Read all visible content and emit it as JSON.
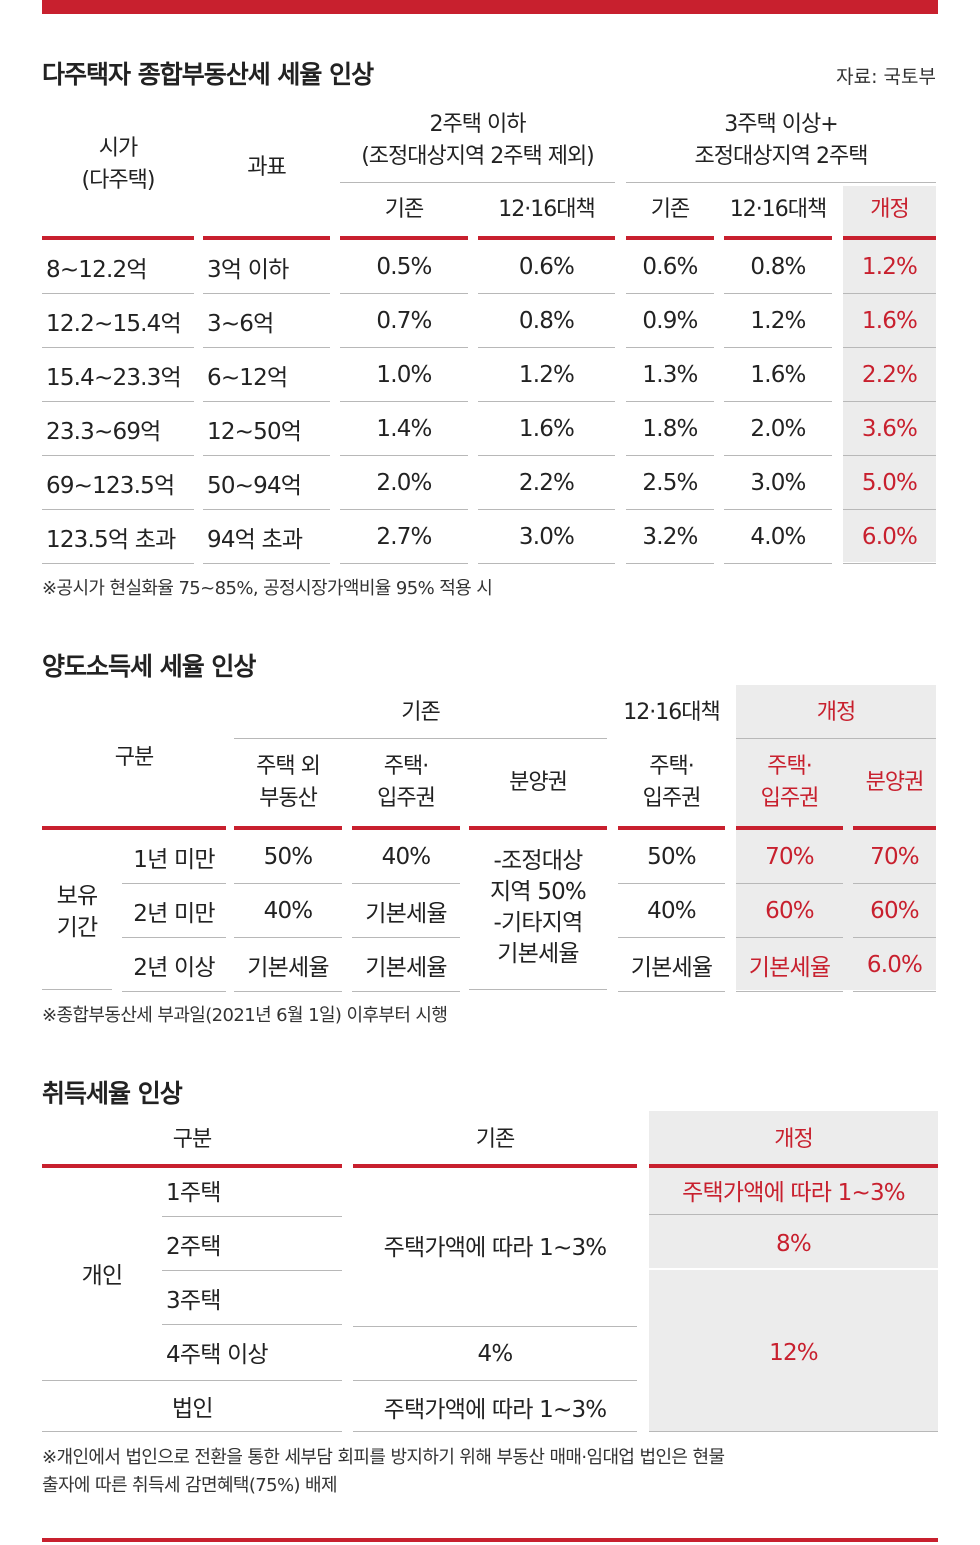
{
  "colors": {
    "accent": "#c8202e",
    "shade": "#ececec"
  },
  "table1": {
    "title": "다주택자 종합부동산세 세율 인상",
    "source": "자료: 국토부",
    "headers": {
      "price": "시가\n(다주택)",
      "base": "과표",
      "group_a": "2주택 이하\n(조정대상지역 2주택 제외)",
      "group_b": "3주택 이상+\n조정대상지역 2주택",
      "existing": "기존",
      "measure": "12·16대책",
      "revised": "개정"
    },
    "rows": [
      [
        "8~12.2억",
        "3억 이하",
        "0.5%",
        "0.6%",
        "0.6%",
        "0.8%",
        "1.2%"
      ],
      [
        "12.2~15.4억",
        "3~6억",
        "0.7%",
        "0.8%",
        "0.9%",
        "1.2%",
        "1.6%"
      ],
      [
        "15.4~23.3억",
        "6~12억",
        "1.0%",
        "1.2%",
        "1.3%",
        "1.6%",
        "2.2%"
      ],
      [
        "23.3~69억",
        "12~50억",
        "1.4%",
        "1.6%",
        "1.8%",
        "2.0%",
        "3.6%"
      ],
      [
        "69~123.5억",
        "50~94억",
        "2.0%",
        "2.2%",
        "2.5%",
        "3.0%",
        "5.0%"
      ],
      [
        "123.5억 초과",
        "94억 초과",
        "2.7%",
        "3.0%",
        "3.2%",
        "4.0%",
        "6.0%"
      ]
    ],
    "note": "※공시가 현실화율 75~85%, 공정시장가액비율 95% 적용 시"
  },
  "table2": {
    "title": "양도소득세 세율 인상",
    "headers": {
      "category": "구분",
      "existing": "기존",
      "measure": "12·16대책",
      "revised": "개정",
      "non_house": "주택 외\n부동산",
      "house": "주택·\n입주권",
      "presale": "분양권",
      "measure_house": "주택·\n입주권",
      "rev_house": "주택·\n입주권",
      "rev_presale": "분양권"
    },
    "period_label": "보유\n기간",
    "rows": [
      {
        "label": "1년 미만",
        "non_house": "50%",
        "house": "40%",
        "measure": "50%",
        "rev_house": "70%",
        "rev_presale": "70%"
      },
      {
        "label": "2년 미만",
        "non_house": "40%",
        "house": "기본세율",
        "measure": "40%",
        "rev_house": "60%",
        "rev_presale": "60%"
      },
      {
        "label": "2년 이상",
        "non_house": "기본세율",
        "house": "기본세율",
        "measure": "기본세율",
        "rev_house": "기본세율",
        "rev_presale": "6.0%"
      }
    ],
    "presale_merged": "-조정대상\n지역 50%\n-기타지역\n기본세율",
    "note": "※종합부동산세 부과일(2021년 6월 1일) 이후부터 시행"
  },
  "table3": {
    "title": "취득세율 인상",
    "headers": {
      "category": "구분",
      "existing": "기존",
      "revised": "개정"
    },
    "individual": "개인",
    "rows": [
      "1주택",
      "2주택",
      "3주택",
      "4주택 이상",
      "법인"
    ],
    "existing_merged": "주택가액에 따라 1~3%",
    "existing_4": "4%",
    "existing_corp": "주택가액에 따라 1~3%",
    "revised_1": "주택가액에 따라 1~3%",
    "revised_2": "8%",
    "revised_rest": "12%",
    "note": "※개인에서 법인으로 전환을 통한 세부담 회피를 방지하기 위해 부동산 매매·임대업 법인은 현물\n출자에 따른 취득세 감면혜택(75%) 배제"
  }
}
